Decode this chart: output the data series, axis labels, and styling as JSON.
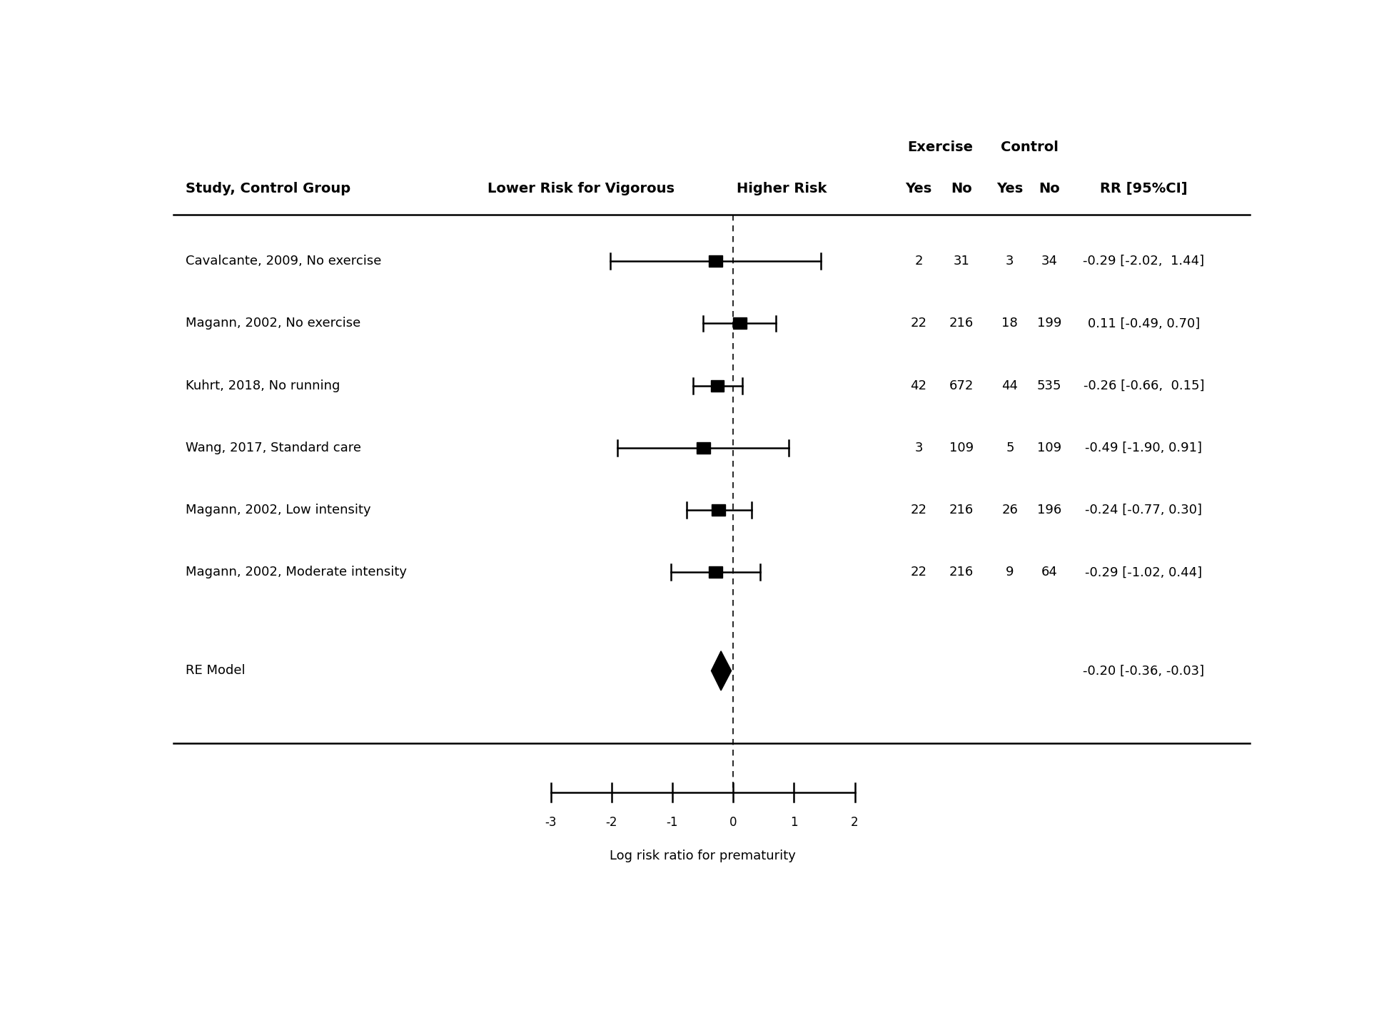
{
  "studies": [
    {
      "label": "Cavalcante, 2009, No exercise",
      "estimate": -0.29,
      "ci_lower": -2.02,
      "ci_upper": 1.44,
      "ex_yes": "2",
      "ex_no": "31",
      "ctrl_yes": "3",
      "ctrl_no": "34",
      "rr_text": "-0.29 [-2.02,  1.44]"
    },
    {
      "label": "Magann, 2002, No exercise",
      "estimate": 0.11,
      "ci_lower": -0.49,
      "ci_upper": 0.7,
      "ex_yes": "22",
      "ex_no": "216",
      "ctrl_yes": "18",
      "ctrl_no": "199",
      "rr_text": "0.11 [-0.49, 0.70]"
    },
    {
      "label": "Kuhrt, 2018, No running",
      "estimate": -0.26,
      "ci_lower": -0.66,
      "ci_upper": 0.15,
      "ex_yes": "42",
      "ex_no": "672",
      "ctrl_yes": "44",
      "ctrl_no": "535",
      "rr_text": "-0.26 [-0.66,  0.15]"
    },
    {
      "label": "Wang, 2017, Standard care",
      "estimate": -0.49,
      "ci_lower": -1.9,
      "ci_upper": 0.91,
      "ex_yes": "3",
      "ex_no": "109",
      "ctrl_yes": "5",
      "ctrl_no": "109",
      "rr_text": "-0.49 [-1.90, 0.91]"
    },
    {
      "label": "Magann, 2002, Low intensity",
      "estimate": -0.24,
      "ci_lower": -0.77,
      "ci_upper": 0.3,
      "ex_yes": "22",
      "ex_no": "216",
      "ctrl_yes": "26",
      "ctrl_no": "196",
      "rr_text": "-0.24 [-0.77, 0.30]"
    },
    {
      "label": "Magann, 2002, Moderate intensity",
      "estimate": -0.29,
      "ci_lower": -1.02,
      "ci_upper": 0.44,
      "ex_yes": "22",
      "ex_no": "216",
      "ctrl_yes": "9",
      "ctrl_no": "64",
      "rr_text": "-0.29 [-1.02, 0.44]"
    }
  ],
  "re_model": {
    "label": "RE Model",
    "estimate": -0.2,
    "ci_lower": -0.36,
    "ci_upper": -0.03,
    "rr_text": "-0.20 [-0.36, -0.03]"
  },
  "header_col1": "Study, Control Group",
  "header_lower": "Lower Risk for Vigorous",
  "header_higher": "Higher Risk",
  "header_ex": "Exercise",
  "header_ctrl": "Control",
  "header_yes": "Yes",
  "header_no": "No",
  "header_rr": "RR [95%CI]",
  "xlabel": "Log risk ratio for prematurity",
  "xmin": -3,
  "xmax": 2,
  "xticks": [
    -3,
    -2,
    -1,
    0,
    1,
    2
  ],
  "background_color": "#ffffff",
  "text_color": "#000000"
}
